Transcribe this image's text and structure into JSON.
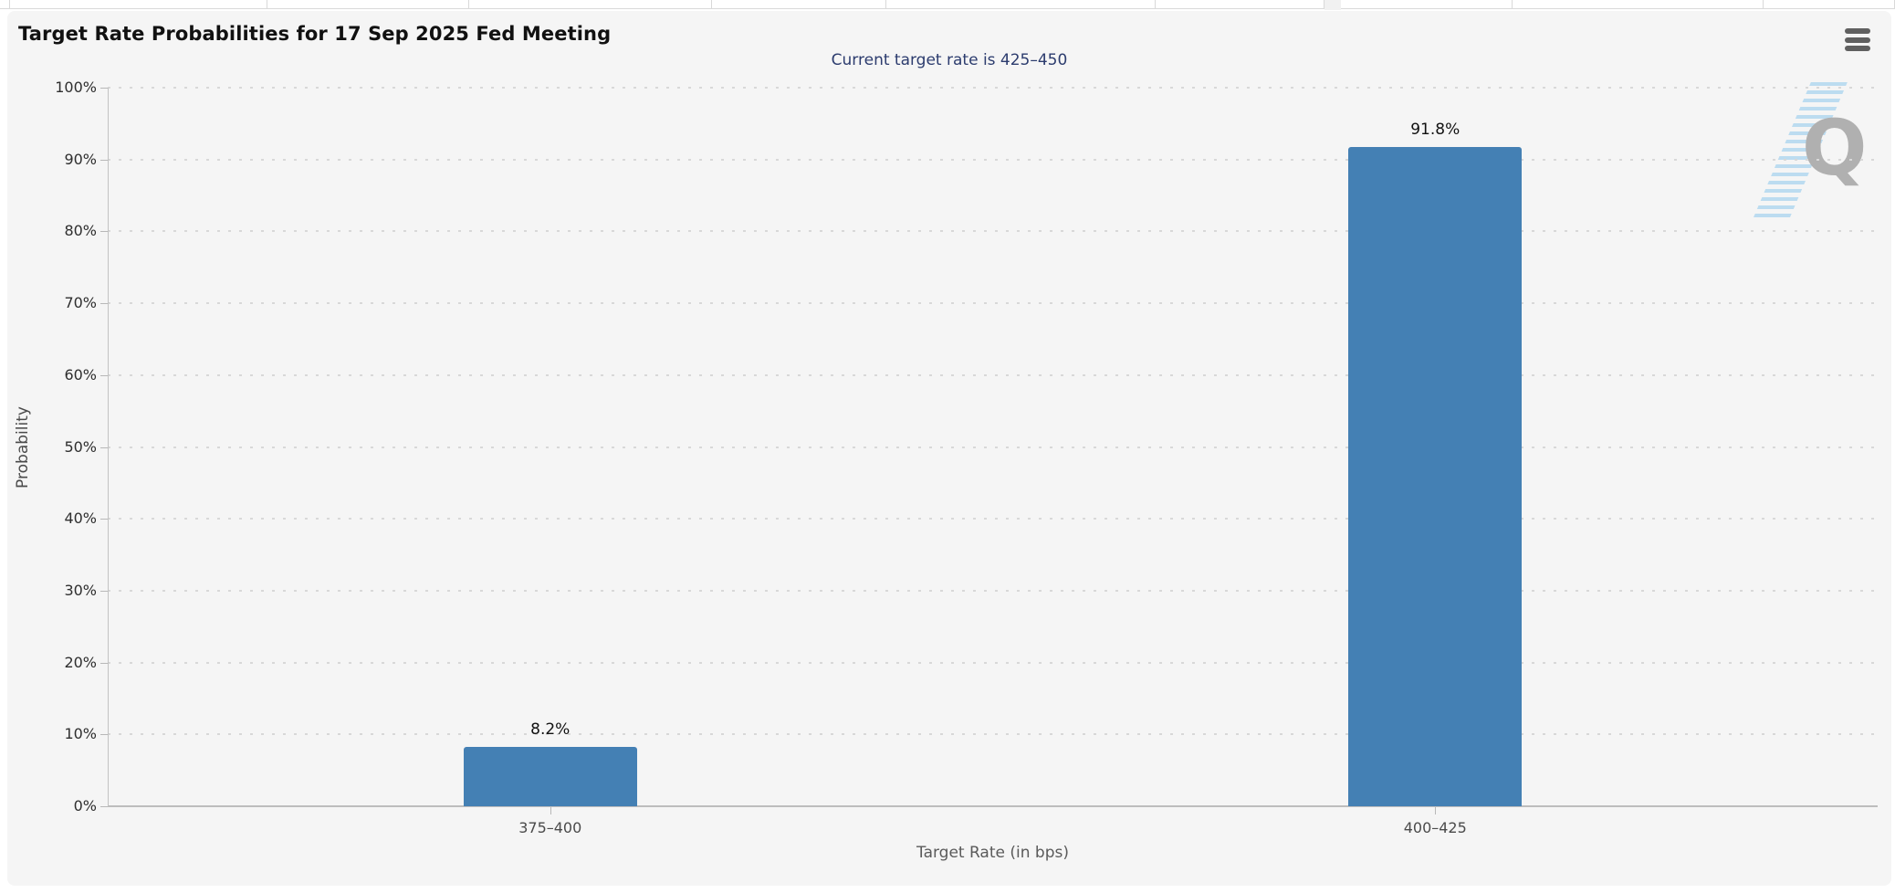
{
  "header": {
    "title": "Target Rate Probabilities for 17 Sep 2025 Fed Meeting",
    "menu_icon": "hamburger-menu-icon"
  },
  "chart_data": {
    "type": "bar",
    "title": "Target Rate Probabilities for 17 Sep 2025 Fed Meeting",
    "subtitle": "Current target rate is 425–450",
    "categories": [
      "375–400",
      "400–425"
    ],
    "values": [
      8.2,
      91.8
    ],
    "value_labels": [
      "8.2%",
      "91.8%"
    ],
    "xlabel": "Target Rate (in bps)",
    "ylabel": "Probability",
    "ylim": [
      0,
      100
    ],
    "ytick_step": 10,
    "ytick_labels": [
      "0%",
      "10%",
      "20%",
      "30%",
      "40%",
      "50%",
      "60%",
      "70%",
      "80%",
      "90%",
      "100%"
    ],
    "grid": "horizontal-dotted",
    "legend": "none",
    "bar_color": "#4480b4",
    "subtitle_color": "#2c3c6e"
  },
  "watermark": {
    "letter": "Q"
  }
}
